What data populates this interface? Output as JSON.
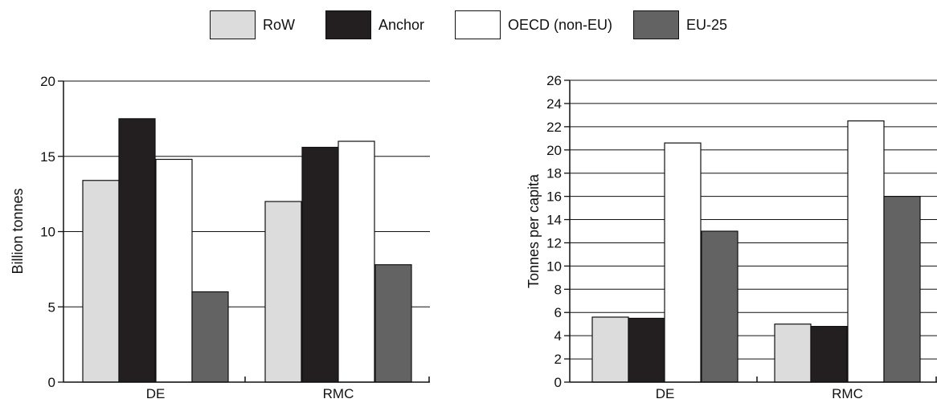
{
  "legend": [
    {
      "name": "RoW",
      "color": "#dcdcdd"
    },
    {
      "name": "Anchor",
      "color": "#231f20"
    },
    {
      "name": "OECD (non-EU)",
      "color": "#ffffff"
    },
    {
      "name": "EU-25",
      "color": "#636363"
    }
  ],
  "chart_data": [
    {
      "type": "bar",
      "categories": [
        "DE",
        "RMC"
      ],
      "series": [
        {
          "name": "RoW",
          "color": "#dcdcdd",
          "values": [
            13.4,
            12.0
          ]
        },
        {
          "name": "Anchor",
          "color": "#231f20",
          "values": [
            17.5,
            15.6
          ]
        },
        {
          "name": "OECD (non-EU)",
          "color": "#ffffff",
          "values": [
            14.8,
            16.0
          ]
        },
        {
          "name": "EU-25",
          "color": "#636363",
          "values": [
            6.0,
            7.8
          ]
        }
      ],
      "ylabel": "Billion tonnes",
      "ylim": [
        0,
        20
      ],
      "yticks": [
        "0",
        "5",
        "10",
        "15",
        "20"
      ],
      "grid": true
    },
    {
      "type": "bar",
      "categories": [
        "DE",
        "RMC"
      ],
      "series": [
        {
          "name": "RoW",
          "color": "#dcdcdd",
          "values": [
            5.6,
            5.0
          ]
        },
        {
          "name": "Anchor",
          "color": "#231f20",
          "values": [
            5.5,
            4.8
          ]
        },
        {
          "name": "OECD (non-EU)",
          "color": "#ffffff",
          "values": [
            20.6,
            22.5
          ]
        },
        {
          "name": "EU-25",
          "color": "#636363",
          "values": [
            13.0,
            16.0
          ]
        }
      ],
      "ylabel": "Tonnes per capita",
      "ylim": [
        0,
        26
      ],
      "yticks": [
        "0",
        "2",
        "4",
        "6",
        "8",
        "10",
        "12",
        "14",
        "16",
        "18",
        "20",
        "22",
        "24",
        "26"
      ],
      "grid": true
    }
  ]
}
